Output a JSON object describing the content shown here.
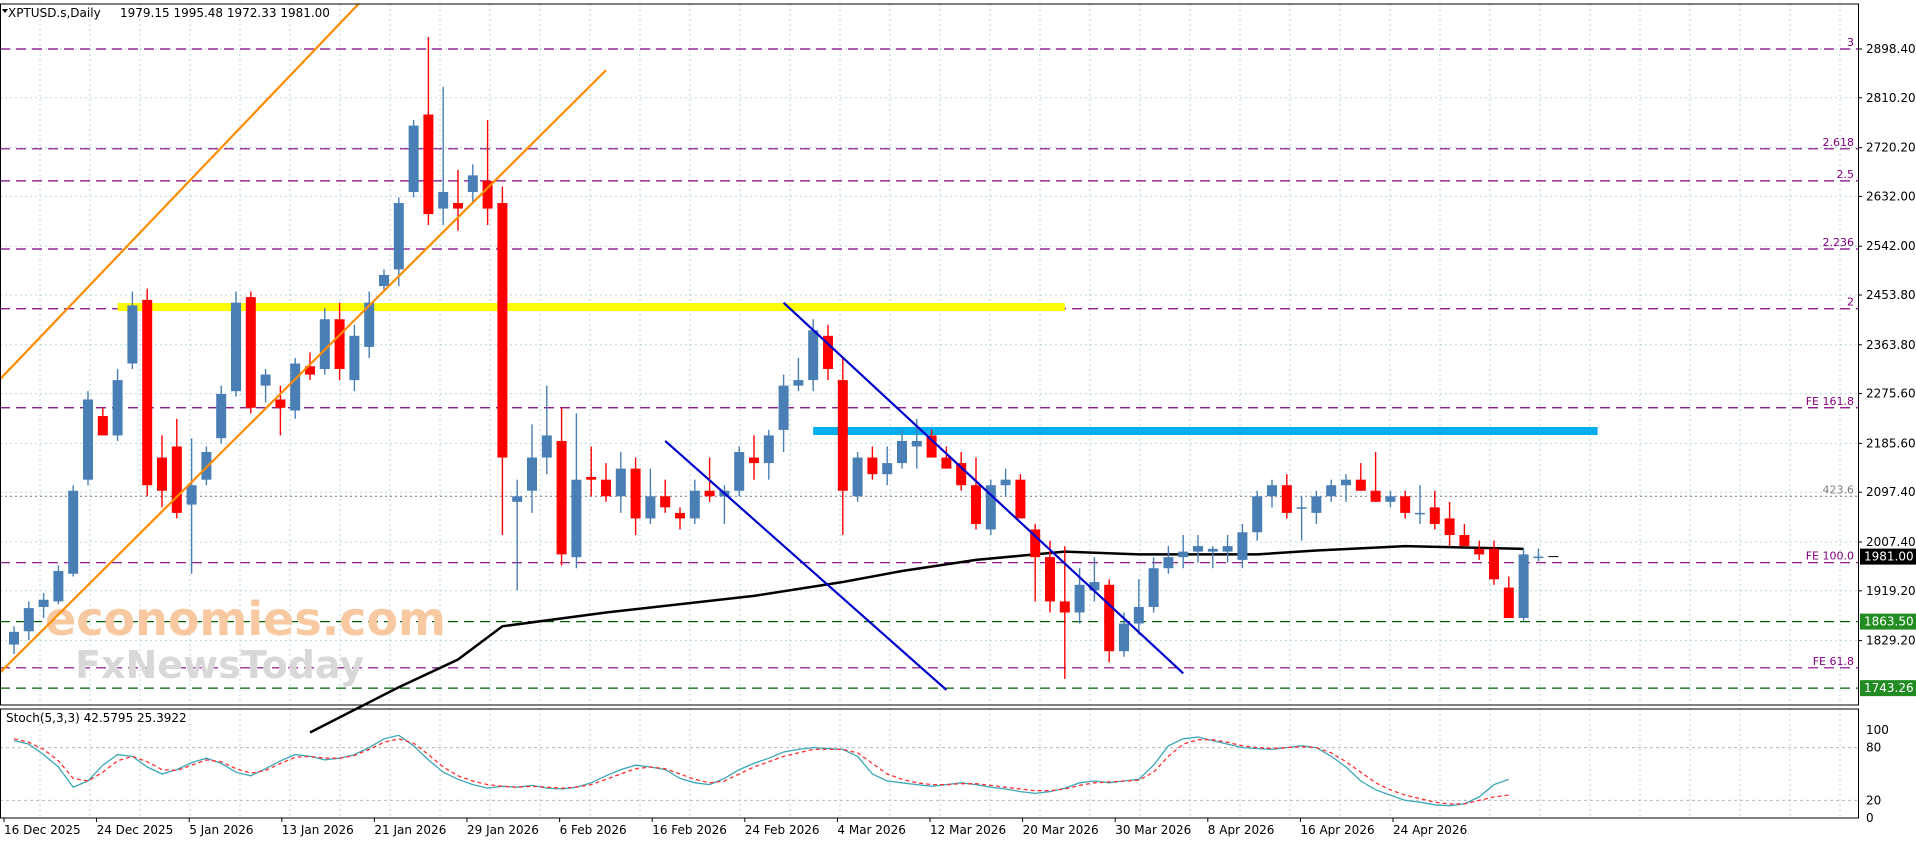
{
  "chart_data": {
    "type": "candlestick",
    "symbol_label": "XPTUSD.s,Daily",
    "ohlc_label": "1979.15 1995.48 1972.33 1981.00",
    "current_price": "1981.00",
    "y_ticks": [
      "2898.40",
      "2810.20",
      "2720.20",
      "2632.00",
      "2542.00",
      "2453.80",
      "2363.80",
      "2275.60",
      "2185.60",
      "2097.40",
      "2007.40",
      "1919.20",
      "1829.20"
    ],
    "x_ticks": [
      "16 Dec 2025",
      "24 Dec 2025",
      "5 Jan 2026",
      "13 Jan 2026",
      "21 Jan 2026",
      "29 Jan 2026",
      "6 Feb 2026",
      "16 Feb 2026",
      "24 Feb 2026",
      "4 Mar 2026",
      "12 Mar 2026",
      "20 Mar 2026",
      "30 Mar 2026",
      "8 Apr 2026",
      "16 Apr 2026",
      "24 Apr 2026"
    ],
    "ylim": [
      1740,
      3000
    ],
    "candles": [
      {
        "o": 1822,
        "h": 1855,
        "l": 1805,
        "c": 1845
      },
      {
        "o": 1846,
        "h": 1900,
        "l": 1830,
        "c": 1888
      },
      {
        "o": 1890,
        "h": 1915,
        "l": 1870,
        "c": 1903
      },
      {
        "o": 1900,
        "h": 1965,
        "l": 1895,
        "c": 1955
      },
      {
        "o": 1950,
        "h": 2110,
        "l": 1945,
        "c": 2100
      },
      {
        "o": 2120,
        "h": 2280,
        "l": 2110,
        "c": 2265
      },
      {
        "o": 2235,
        "h": 2250,
        "l": 2200,
        "c": 2200
      },
      {
        "o": 2200,
        "h": 2320,
        "l": 2190,
        "c": 2300
      },
      {
        "o": 2330,
        "h": 2460,
        "l": 2320,
        "c": 2435
      },
      {
        "o": 2445,
        "h": 2465,
        "l": 2090,
        "c": 2110
      },
      {
        "o": 2160,
        "h": 2200,
        "l": 2070,
        "c": 2100
      },
      {
        "o": 2180,
        "h": 2230,
        "l": 2050,
        "c": 2060
      },
      {
        "o": 2075,
        "h": 2195,
        "l": 1950,
        "c": 2110
      },
      {
        "o": 2120,
        "h": 2180,
        "l": 2110,
        "c": 2170
      },
      {
        "o": 2195,
        "h": 2290,
        "l": 2185,
        "c": 2275
      },
      {
        "o": 2280,
        "h": 2460,
        "l": 2270,
        "c": 2440
      },
      {
        "o": 2450,
        "h": 2460,
        "l": 2240,
        "c": 2250
      },
      {
        "o": 2290,
        "h": 2320,
        "l": 2260,
        "c": 2310
      },
      {
        "o": 2265,
        "h": 2290,
        "l": 2200,
        "c": 2250
      },
      {
        "o": 2245,
        "h": 2340,
        "l": 2230,
        "c": 2330
      },
      {
        "o": 2325,
        "h": 2350,
        "l": 2300,
        "c": 2310
      },
      {
        "o": 2320,
        "h": 2430,
        "l": 2310,
        "c": 2410
      },
      {
        "o": 2410,
        "h": 2440,
        "l": 2300,
        "c": 2320
      },
      {
        "o": 2300,
        "h": 2400,
        "l": 2280,
        "c": 2380
      },
      {
        "o": 2360,
        "h": 2460,
        "l": 2340,
        "c": 2440
      },
      {
        "o": 2470,
        "h": 2500,
        "l": 2460,
        "c": 2490
      },
      {
        "o": 2500,
        "h": 2630,
        "l": 2470,
        "c": 2620
      },
      {
        "o": 2640,
        "h": 2770,
        "l": 2630,
        "c": 2760
      },
      {
        "o": 2780,
        "h": 2920,
        "l": 2580,
        "c": 2600
      },
      {
        "o": 2610,
        "h": 2830,
        "l": 2580,
        "c": 2640
      },
      {
        "o": 2620,
        "h": 2680,
        "l": 2570,
        "c": 2610
      },
      {
        "o": 2640,
        "h": 2690,
        "l": 2620,
        "c": 2670
      },
      {
        "o": 2660,
        "h": 2770,
        "l": 2580,
        "c": 2610
      },
      {
        "o": 2620,
        "h": 2650,
        "l": 2020,
        "c": 2160
      },
      {
        "o": 2080,
        "h": 2120,
        "l": 1920,
        "c": 2090
      },
      {
        "o": 2100,
        "h": 2220,
        "l": 2060,
        "c": 2160
      },
      {
        "o": 2160,
        "h": 2290,
        "l": 2130,
        "c": 2200
      },
      {
        "o": 2190,
        "h": 2250,
        "l": 1965,
        "c": 1985
      },
      {
        "o": 1980,
        "h": 2240,
        "l": 1960,
        "c": 2120
      },
      {
        "o": 2125,
        "h": 2180,
        "l": 2090,
        "c": 2120
      },
      {
        "o": 2120,
        "h": 2150,
        "l": 2080,
        "c": 2090
      },
      {
        "o": 2090,
        "h": 2170,
        "l": 2060,
        "c": 2140
      },
      {
        "o": 2140,
        "h": 2160,
        "l": 2020,
        "c": 2050
      },
      {
        "o": 2050,
        "h": 2140,
        "l": 2040,
        "c": 2090
      },
      {
        "o": 2090,
        "h": 2120,
        "l": 2060,
        "c": 2070
      },
      {
        "o": 2060,
        "h": 2070,
        "l": 2030,
        "c": 2050
      },
      {
        "o": 2050,
        "h": 2120,
        "l": 2040,
        "c": 2100
      },
      {
        "o": 2100,
        "h": 2160,
        "l": 2080,
        "c": 2090
      },
      {
        "o": 2090,
        "h": 2110,
        "l": 2040,
        "c": 2100
      },
      {
        "o": 2100,
        "h": 2180,
        "l": 2090,
        "c": 2170
      },
      {
        "o": 2160,
        "h": 2200,
        "l": 2120,
        "c": 2150
      },
      {
        "o": 2150,
        "h": 2210,
        "l": 2120,
        "c": 2200
      },
      {
        "o": 2210,
        "h": 2310,
        "l": 2170,
        "c": 2290
      },
      {
        "o": 2290,
        "h": 2340,
        "l": 2280,
        "c": 2300
      },
      {
        "o": 2300,
        "h": 2410,
        "l": 2280,
        "c": 2390
      },
      {
        "o": 2380,
        "h": 2400,
        "l": 2300,
        "c": 2320
      },
      {
        "o": 2300,
        "h": 2340,
        "l": 2020,
        "c": 2100
      },
      {
        "o": 2090,
        "h": 2170,
        "l": 2080,
        "c": 2160
      },
      {
        "o": 2160,
        "h": 2180,
        "l": 2120,
        "c": 2130
      },
      {
        "o": 2130,
        "h": 2180,
        "l": 2110,
        "c": 2150
      },
      {
        "o": 2150,
        "h": 2210,
        "l": 2140,
        "c": 2190
      },
      {
        "o": 2180,
        "h": 2230,
        "l": 2140,
        "c": 2190
      },
      {
        "o": 2200,
        "h": 2210,
        "l": 2160,
        "c": 2160
      },
      {
        "o": 2160,
        "h": 2180,
        "l": 2140,
        "c": 2140
      },
      {
        "o": 2150,
        "h": 2170,
        "l": 2100,
        "c": 2110
      },
      {
        "o": 2110,
        "h": 2160,
        "l": 2030,
        "c": 2040
      },
      {
        "o": 2030,
        "h": 2120,
        "l": 2020,
        "c": 2110
      },
      {
        "o": 2110,
        "h": 2140,
        "l": 2090,
        "c": 2120
      },
      {
        "o": 2120,
        "h": 2130,
        "l": 2050,
        "c": 2050
      },
      {
        "o": 2030,
        "h": 2040,
        "l": 1900,
        "c": 1980
      },
      {
        "o": 1980,
        "h": 2010,
        "l": 1880,
        "c": 1900
      },
      {
        "o": 1900,
        "h": 2000,
        "l": 1760,
        "c": 1880
      },
      {
        "o": 1880,
        "h": 1960,
        "l": 1860,
        "c": 1930
      },
      {
        "o": 1920,
        "h": 1980,
        "l": 1900,
        "c": 1935
      },
      {
        "o": 1930,
        "h": 1940,
        "l": 1790,
        "c": 1810
      },
      {
        "o": 1810,
        "h": 1880,
        "l": 1800,
        "c": 1860
      },
      {
        "o": 1860,
        "h": 1940,
        "l": 1840,
        "c": 1890
      },
      {
        "o": 1890,
        "h": 1980,
        "l": 1880,
        "c": 1960
      },
      {
        "o": 1960,
        "h": 2000,
        "l": 1950,
        "c": 1980
      },
      {
        "o": 1980,
        "h": 2020,
        "l": 1960,
        "c": 1990
      },
      {
        "o": 1990,
        "h": 2020,
        "l": 1970,
        "c": 2000
      },
      {
        "o": 1990,
        "h": 2000,
        "l": 1960,
        "c": 1995
      },
      {
        "o": 1990,
        "h": 2020,
        "l": 1970,
        "c": 2000
      },
      {
        "o": 1975,
        "h": 2040,
        "l": 1960,
        "c": 2025
      },
      {
        "o": 2025,
        "h": 2100,
        "l": 2010,
        "c": 2090
      },
      {
        "o": 2090,
        "h": 2120,
        "l": 2070,
        "c": 2110
      },
      {
        "o": 2110,
        "h": 2130,
        "l": 2050,
        "c": 2060
      },
      {
        "o": 2070,
        "h": 2090,
        "l": 2010,
        "c": 2070
      },
      {
        "o": 2060,
        "h": 2100,
        "l": 2040,
        "c": 2090
      },
      {
        "o": 2090,
        "h": 2120,
        "l": 2080,
        "c": 2110
      },
      {
        "o": 2110,
        "h": 2130,
        "l": 2080,
        "c": 2120
      },
      {
        "o": 2120,
        "h": 2150,
        "l": 2100,
        "c": 2100
      },
      {
        "o": 2100,
        "h": 2170,
        "l": 2080,
        "c": 2080
      },
      {
        "o": 2080,
        "h": 2100,
        "l": 2070,
        "c": 2090
      },
      {
        "o": 2090,
        "h": 2100,
        "l": 2050,
        "c": 2060
      },
      {
        "o": 2060,
        "h": 2110,
        "l": 2040,
        "c": 2060
      },
      {
        "o": 2070,
        "h": 2100,
        "l": 2030,
        "c": 2040
      },
      {
        "o": 2050,
        "h": 2080,
        "l": 2000,
        "c": 2020
      },
      {
        "o": 2020,
        "h": 2040,
        "l": 2000,
        "c": 2000
      },
      {
        "o": 1995,
        "h": 2010,
        "l": 1975,
        "c": 1985
      },
      {
        "o": 1995,
        "h": 2010,
        "l": 1930,
        "c": 1940
      },
      {
        "o": 1925,
        "h": 1945,
        "l": 1870,
        "c": 1870
      },
      {
        "o": 1870,
        "h": 1995,
        "l": 1865,
        "c": 1985
      },
      {
        "o": 1979.15,
        "h": 1995.48,
        "l": 1972.33,
        "c": 1981.0
      }
    ],
    "moving_average": [
      {
        "i": 20,
        "v": 1663
      },
      {
        "i": 26,
        "v": 1745
      },
      {
        "i": 30,
        "v": 1795
      },
      {
        "i": 33,
        "v": 1855
      },
      {
        "i": 40,
        "v": 1880
      },
      {
        "i": 50,
        "v": 1910
      },
      {
        "i": 56,
        "v": 1935
      },
      {
        "i": 60,
        "v": 1955
      },
      {
        "i": 65,
        "v": 1975
      },
      {
        "i": 71,
        "v": 1990
      },
      {
        "i": 76,
        "v": 1985
      },
      {
        "i": 84,
        "v": 1985
      },
      {
        "i": 88,
        "v": 1992
      },
      {
        "i": 94,
        "v": 2000
      },
      {
        "i": 102,
        "v": 1995
      }
    ],
    "h_levels": [
      {
        "price": 2898.4,
        "label": "3",
        "color": "#800080",
        "dash": "10,6"
      },
      {
        "price": 2718,
        "label": "2.618",
        "color": "#800080",
        "dash": "10,6"
      },
      {
        "price": 2660,
        "label": "2.5",
        "color": "#800080",
        "dash": "10,6"
      },
      {
        "price": 2537,
        "label": "2.236",
        "color": "#800080",
        "dash": "10,6"
      },
      {
        "price": 2429,
        "label": "2",
        "color": "#800080",
        "dash": "10,6"
      },
      {
        "price": 2250,
        "label": "FE 161.8",
        "color": "#800080",
        "dash": "10,6"
      },
      {
        "price": 2090,
        "label": "423.6",
        "color": "#808080",
        "dash": "2,3"
      },
      {
        "price": 1970,
        "label": "FE 100.0",
        "color": "#800080",
        "dash": "10,6"
      },
      {
        "price": 1863.5,
        "label": "",
        "color": "#006400",
        "dash": "10,6"
      },
      {
        "price": 1780,
        "label": "FE 61.8",
        "color": "#800080",
        "dash": "10,6"
      },
      {
        "price": 1743.26,
        "label": "",
        "color": "#006400",
        "dash": "10,6"
      }
    ],
    "price_tags": [
      {
        "price": 1981.0,
        "text": "1981.00",
        "bg": "#000000"
      },
      {
        "price": 1863.5,
        "text": "1863.50",
        "bg": "#228B22"
      },
      {
        "price": 1743.26,
        "text": "1743.26",
        "bg": "#228B22"
      }
    ],
    "zones": [
      {
        "from_i": 7,
        "to_i": 71,
        "price": 2432,
        "color": "#ffff00"
      },
      {
        "from_i": 54,
        "to_i": 107,
        "price": 2208,
        "color": "#00aeef"
      }
    ],
    "trend_lines": [
      {
        "i1": -1,
        "p1": 2300,
        "i2": 24,
        "p2": 3000,
        "color": "#ff8c00"
      },
      {
        "i1": -1,
        "p1": 1770,
        "i2": 40,
        "p2": 2860,
        "color": "#ff8c00"
      },
      {
        "i1": 52,
        "p1": 2440,
        "i2": 79,
        "p2": 1770,
        "color": "#0000cd"
      },
      {
        "i1": 44,
        "p1": 2190,
        "i2": 63,
        "p2": 1740,
        "color": "#0000cd"
      }
    ],
    "indicator": {
      "label": "Stoch(5,3,3) 42.5795 25.3922",
      "y_ticks": [
        "100",
        "80",
        "20",
        "0"
      ],
      "main": [
        88,
        84,
        72,
        58,
        35,
        42,
        60,
        72,
        70,
        58,
        50,
        55,
        63,
        68,
        62,
        52,
        48,
        56,
        65,
        72,
        70,
        66,
        68,
        72,
        80,
        90,
        94,
        82,
        66,
        52,
        44,
        38,
        34,
        36,
        35,
        37,
        34,
        33,
        35,
        40,
        48,
        55,
        60,
        58,
        55,
        45,
        40,
        38,
        45,
        55,
        62,
        68,
        75,
        78,
        80,
        79,
        78,
        70,
        50,
        42,
        40,
        38,
        36,
        38,
        40,
        38,
        35,
        33,
        30,
        28,
        30,
        34,
        40,
        42,
        40,
        42,
        44,
        60,
        82,
        90,
        92,
        88,
        84,
        80,
        79,
        78,
        80,
        82,
        80,
        70,
        58,
        42,
        32,
        26,
        20,
        18,
        15,
        14,
        16,
        24,
        38,
        44
      ],
      "signal": [
        90,
        86,
        78,
        65,
        45,
        42,
        52,
        65,
        70,
        64,
        55,
        54,
        60,
        66,
        64,
        56,
        51,
        54,
        62,
        69,
        70,
        68,
        68,
        71,
        78,
        86,
        90,
        85,
        72,
        58,
        48,
        42,
        38,
        36,
        35,
        36,
        35,
        34,
        35,
        38,
        44,
        50,
        56,
        58,
        56,
        50,
        44,
        40,
        42,
        50,
        58,
        64,
        70,
        74,
        78,
        78,
        78,
        74,
        62,
        50,
        44,
        40,
        38,
        38,
        39,
        39,
        37,
        35,
        33,
        31,
        31,
        33,
        37,
        40,
        41,
        42,
        43,
        52,
        70,
        84,
        89,
        89,
        86,
        82,
        80,
        79,
        80,
        81,
        80,
        74,
        64,
        52,
        40,
        32,
        26,
        22,
        18,
        16,
        16,
        20,
        24,
        26
      ]
    },
    "watermark_top": "economies.com",
    "watermark_bottom": "FxNewsToday"
  }
}
